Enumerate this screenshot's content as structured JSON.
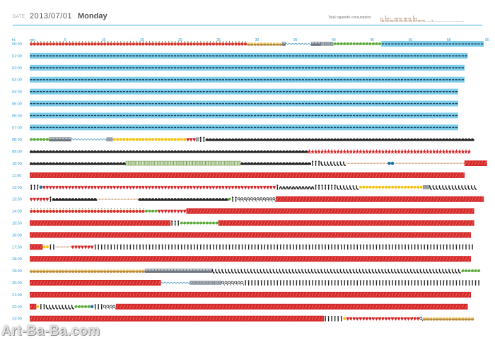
{
  "header": {
    "date_label": "DATE",
    "date_value": "2013/07/01",
    "day_value": "Monday",
    "cigarette_label": "Total cigarette consumption"
  },
  "axis": {
    "hour_header": "hr.",
    "minute_header": "min.",
    "minute_ticks": [
      "5",
      "10",
      "15",
      "20",
      "25",
      "30",
      "35",
      "40",
      "45",
      "50",
      "55",
      "60"
    ],
    "hours": [
      "00:00",
      "01:00",
      "02:00",
      "03:00",
      "04:00",
      "05:00",
      "06:00",
      "07:00",
      "08:00",
      "09:00",
      "10:00",
      "11:00",
      "12:00",
      "13:00",
      "14:00",
      "15:00",
      "16:00",
      "17:00",
      "18:00",
      "19:00",
      "20:00",
      "21:00",
      "22:00",
      "23:00"
    ]
  },
  "colors": {
    "accent": "#2c9bd4",
    "sleep": "#7ccde9",
    "work": "#d62a2a",
    "tomato": "#d8322a",
    "car": "#222222",
    "person": "#222222",
    "phone": "#222222",
    "food": "#b88a3a",
    "leaf": "#5daa3a",
    "sun": "#f2c418",
    "heart": "#d6262a",
    "eye": "#1a70a8"
  },
  "legend_symbols": {
    "T": "tomato-icon",
    "S": "sleep-icon",
    "R": "work-icon",
    "C": "car-icon",
    "P": "person-icon",
    "H": "phone-icon",
    "h": "handset-icon",
    "F": "food-icon",
    "L": "leaf-icon",
    "Y": "sun-icon",
    "Q": "magnifier-icon",
    "V": "heart-icon",
    "G": "grid-icon",
    "D": "device-icon",
    "B": "star-icon",
    "K": "cigarette-icon",
    "E": "eye-icon",
    "W": "wave-icon",
    "M": "metro-icon"
  },
  "rows": [
    "TTTTTTTTTTTTTTTTTTTTTTTTTTTTTTTTTTTTTTTTTTTTTTTTTTTTTTTTTTTTTTTTTTTTFFFFFFFFFFFMWWWWWWWWMMMDDDDLLLLLLLLLLLLLLLSSSSSSSSSSSSSSSSSSSSSSSSSSSSSSSS",
    "SSSSSSSSSSSSSSSSSSSSSSSSSSSSSSSSSSSSSSSSSSSSSSSSSSSSSSSSSSSSSSSSSSSSSSSSSSSSSSSSSSSSSSSSSSSSSSSSSSSSSSSSSSSSSSSSSSSSSSSSSSSSSSSSSSSSSSSSS",
    "SSSSSSSSSSSSSSSSSSSSSSSSSSSSSSSSSSSSSSSSSSSSSSSSSSSSSSSSSSSSSSSSSSSSSSSSSSSSSSSSSSSSSSSSSSSSSSSSSSSSSSSSSSSSSSSSSSSSSSSSSSSSSSSSSSSSSSSS",
    "SSSSSSSSSSSSSSSSSSSSSSSSSSSSSSSSSSSSSSSSSSSSSSSSSSSSSSSSSSSSSSSSSSSSSSSSSSSSSSSSSSSSSSSSSSSSSSSSSSSSSSSSSSSSSSSSSSSSSSSSSSSSSSSSSSSSSSSS",
    "SSSSSSSSSSSSSSSSSSSSSSSSSSSSSSSSSSSSSSSSSSSSSSSSSSSSSSSSSSSSSSSSSSSSSSSSSSSSSSSSSSSSSSSSSSSSSSSSSSSSSSSSSSSSSSSSSSSSSSSSSSSSSSSSSSSSSS",
    "SSSSSSSSSSSSSSSSSSSSSSSSSSSSSSSSSSSSSSSSSSSSSSSSSSSSSSSSSSSSSSSSSSSSSSSSSSSSSSSSSSSSSSSSSSSSSSSSSSSSSSSSSSSSSSSSSSSSSSSSSSSSSSSSSSSSSS",
    "SSSSSSSSSSSSSSSSSSSSSSSSSSSSSSSSSSSSSSSSSSSSSSSSSSSSSSSSSSSSSSSSSSSSSSSSSSSSSSSSSSSSSSSSSSSSSSSSSSSSSSSSSSSSSSSSSSSSSSSSSSSSSSSSSSSSSS",
    "SSSSSSSSSSSSSSSSSSSSSSSSSSSSSSSSSSSSSSSSSSSSSSSSSSSSSSSSSSSSSSSSSSSSSSSSSSSSSSSSSSSSSSSSSSSSSSSSSSSSSSSSSSSSSSSSSSSSSSSSSSSSSSSSSSSSSS",
    "LLLLLLMMMMMMMWWWWWWWWWWWDDYYYYYYYYYYYYYYYYYYYYYYYVVVDPPCCCCCCCCCCCCCCCCCCCCCCCCCCCCCCCCCCCCCCCCCCCCCCCCCCCCCCCCCCCCCCCCCCCCCCCCCCCCCCCCCCCC",
    "CCCCCCCCCCCCCCCCCCCCCCCCCCCCCCCCCCCCCCCCCCCCCCCCCCCCCCCCCCCCCCCCCCCCCCCCCCCCCCCCCCCCCCCBBBBBBBBBBBBBBBBBBBBBBBBBBBBBBBBBBBBBBBBBBBBBBBBBBB",
    "CCCCCCCCCCCCCCCCCCCCCCCCCCCCCCGGGGGGGGGGGGGGGGGGGGGGGGGGGGGGGGGGGGCCCCCCCCCCCCCCCCCCCCCCPPPHHHHHHHHKKKKKKKKKKKKKEEKKKKKKKKKKKKKKKKKKKKKKRRRRRRR",
    "RRRRRRRRRRRRRRRRRRRRRRRRRRRRRRRRRRRRRRRRRRRRRRRRRRRRRRRRRRRRRRRRRRRRRRRRRRRRRRRRRRRRRRRRRRRRRRRRRRRRRRRRRRRRRRRRRRRRRRRRRRRRRRRRRRRRRRRR",
    "PPPEVVVVVVVVVVVVVVVVVVVVVVVVVVVVVVVVVVVVVVVVVVVVVVVVVVVVVVVVVVVVVVVVVVVVVVVVVPhhhhhhhhhhhPPPPPPPHHHHHHHYYYYYYYYYYYYYYYYYYYYDDHHHHHHHHHHHHHHH",
    "VVVVVVPCCCCCCCCCCCCCCKKKKKKKKKKKKKCCCCCCCCCCCCCCCCCCCCCCCCCCCCLPPQQQQQQQQQQQQRRRRRRRRRRRRRRRRRRRRRRRRRRRRRRRRRRRRRRRRRRRRRRRRRRRRRRRRRRRRRRRRR",
    "TTTTTTTTTTTTTTTTTTTTTTTTTTTTTTTTTTTTLLLLVVVVVVVVVRRRRRRRRRRRRRRRRRRRRRRRRRRRRRRRRRRRRRRRRRRRRRRRRRRRRRRRRRRRRRRRRRRRRRRRRRRRRRRRRRRRRRRRRRR",
    "RRRRRRRRRRRRRRRRRRRRRRRRRRRRRRRRRRRRRRRRRRRRPPPLLLLLLLLLLLLRRRRRRRRRRRRRRRRRRRRRRRRRRRRRRRRRRRRRRRRRRRRRRRRRRRRRRRRRRRRRRRRRRRRRRRRRRRRRRRR",
    "RRRRRRRRRRRRRRRRRRRRRRRRRRRRRRRRRRRRRRRRRRRRRRRRRRRRRRRRRRRRRRRRRRRRRRRRRRRRRRRRRRRRRRRRRRRRRRRRRRRRRRRRRRRRRRRRRRRRRRRRRRRRRRRRRRRRRRRRRR",
    "RRRRYYPPKKKKKVVVVVVVPPPPPPPPPPPPPPPPPPPPPPPPPPPPPPPPPPPPPPPPPPPPPPPPPPPPPPPPPPPPPPPPPPPPPPPPPPPPPPPPPPPPPPPPPPPPPPPPPPPPPPPPPPPPPPPPPPPPPPP",
    "RRRRRRRRRRRRRRRRRRRRRRRRRRRRRRRRRRRRRRRRRRRRRRRRRRRRRRRRRRRRRRRRRRRRRRRRRRRRRRRRRRRRRRRRRRRRRRRRRRRRRRRRRRRRRRRRRRRRRRRRRRRRRRRRRRRRRRRRRR",
    "FFFFFFFFFFFFFFFFFFFFFFFFFFFFFFFFFFFFMMMMMMMMMMMMMMMMMMMMMHHHHHHHHHHHHHHHHHHHHHHHHHHHHHHHHHHHHHHHHHHHHHHHHHHHHHHHHHHHHHHHHHHHHHHHHHHHHHHLLLLLL",
    "RRRRRRRRRRRRRRRRRRRRRRRRRRRRRRRRRRRRRRRRRWWWWWWWWWDDDDDDDDDDQQQQQQQPPPPPPPPPPPPPPPPPPPPPPPPPPPPPPPPPPPPPPPPPPPPPPPPPPPPPPPPPPPPPPPPPPPPPPPPPP",
    "RRRRRRRRRRRRRRRRRRRRRRRRRRRRRRRRRRRRRRRRRRRRRRRRRRRRRRRRRRRRRRRRRRRRRRRRRRRRRRRRRRRRRRRRRRRRRRRRRRRRRRRRRRRRRRRRRRRRRRRRRRRRRRRRRRRRRRRRRR",
    "RRYPPHHHHHHHHHLLLLLEPPPQQQQRRRRRRRRRRRRRRRRRRRRRRRRRRRRRRRRRRRRRRRRRRRRRRRRRRRRRRRRRRRRRRRRRRRRRRRRRRRRRRRRRRRRRRRRRRRRRRRRRRRRRRRRRRRRRR",
    "RRRRRRRRRRRRRRRRRRRRRRRRRRRRRRRRRRRRRRRRRRRRRRRRRRRRRRRRRRRRRRRRRRRRRRRRRRRRRRRRRRRRRRRRRRRRPPPPPPYVVVVVVVVVVVVVVVVVVVVVVVQFFFFFFFFFFFFFFFF"
  ],
  "cigarette_chart": [
    5,
    7,
    4,
    6,
    5,
    6,
    5,
    7,
    3,
    2,
    0,
    1,
    0,
    0,
    0,
    0,
    0,
    0
  ],
  "watermark": "Art-Ba-Ba.com"
}
